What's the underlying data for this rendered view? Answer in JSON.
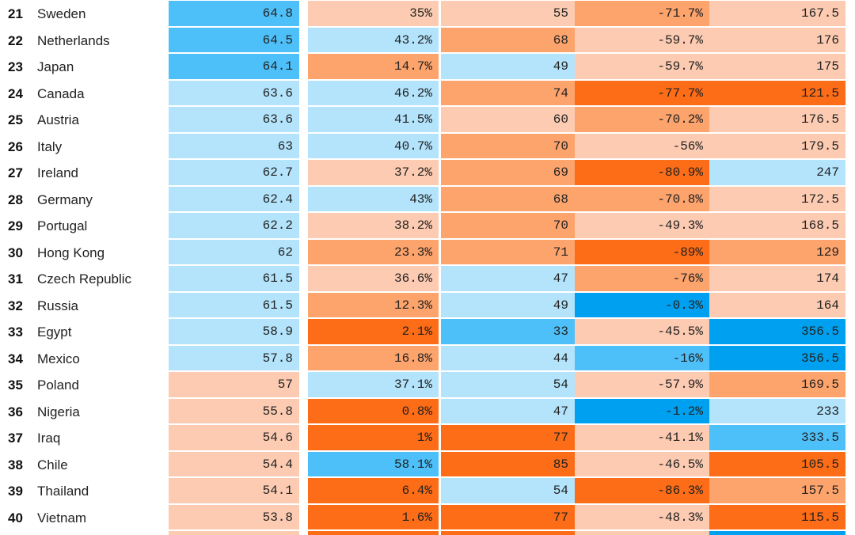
{
  "colors": {
    "blue_dark": "#00a0f0",
    "blue_mid": "#4ec0f9",
    "blue_light": "#b3e4fc",
    "orange_light": "#fdcbb1",
    "orange_mid": "#fda36c",
    "orange_dark": "#fd6c16"
  },
  "rows": [
    {
      "rank": "21",
      "country": "Sweden",
      "cells": [
        {
          "value": "64.8",
          "color": "#4ec0f9"
        },
        {
          "value": "35%",
          "color": "#fdcbb1"
        },
        {
          "value": "55",
          "color": "#fdcbb1"
        },
        {
          "value": "-71.7%",
          "color": "#fda36c"
        },
        {
          "value": "167.5",
          "color": "#fdcbb1"
        }
      ]
    },
    {
      "rank": "22",
      "country": "Netherlands",
      "cells": [
        {
          "value": "64.5",
          "color": "#4ec0f9"
        },
        {
          "value": "43.2%",
          "color": "#b3e4fc"
        },
        {
          "value": "68",
          "color": "#fda36c"
        },
        {
          "value": "-59.7%",
          "color": "#fdcbb1"
        },
        {
          "value": "176",
          "color": "#fdcbb1"
        }
      ]
    },
    {
      "rank": "23",
      "country": "Japan",
      "cells": [
        {
          "value": "64.1",
          "color": "#4ec0f9"
        },
        {
          "value": "14.7%",
          "color": "#fda36c"
        },
        {
          "value": "49",
          "color": "#b3e4fc"
        },
        {
          "value": "-59.7%",
          "color": "#fdcbb1"
        },
        {
          "value": "175",
          "color": "#fdcbb1"
        }
      ]
    },
    {
      "rank": "24",
      "country": "Canada",
      "cells": [
        {
          "value": "63.6",
          "color": "#b3e4fc"
        },
        {
          "value": "46.2%",
          "color": "#b3e4fc"
        },
        {
          "value": "74",
          "color": "#fda36c"
        },
        {
          "value": "-77.7%",
          "color": "#fd6c16"
        },
        {
          "value": "121.5",
          "color": "#fd6c16"
        }
      ]
    },
    {
      "rank": "25",
      "country": "Austria",
      "cells": [
        {
          "value": "63.6",
          "color": "#b3e4fc"
        },
        {
          "value": "41.5%",
          "color": "#b3e4fc"
        },
        {
          "value": "60",
          "color": "#fdcbb1"
        },
        {
          "value": "-70.2%",
          "color": "#fda36c"
        },
        {
          "value": "176.5",
          "color": "#fdcbb1"
        }
      ]
    },
    {
      "rank": "26",
      "country": "Italy",
      "cells": [
        {
          "value": "63",
          "color": "#b3e4fc"
        },
        {
          "value": "40.7%",
          "color": "#b3e4fc"
        },
        {
          "value": "70",
          "color": "#fda36c"
        },
        {
          "value": "-56%",
          "color": "#fdcbb1"
        },
        {
          "value": "179.5",
          "color": "#fdcbb1"
        }
      ]
    },
    {
      "rank": "27",
      "country": "Ireland",
      "cells": [
        {
          "value": "62.7",
          "color": "#b3e4fc"
        },
        {
          "value": "37.2%",
          "color": "#fdcbb1"
        },
        {
          "value": "69",
          "color": "#fda36c"
        },
        {
          "value": "-80.9%",
          "color": "#fd6c16"
        },
        {
          "value": "247",
          "color": "#b3e4fc"
        }
      ]
    },
    {
      "rank": "28",
      "country": "Germany",
      "cells": [
        {
          "value": "62.4",
          "color": "#b3e4fc"
        },
        {
          "value": "43%",
          "color": "#b3e4fc"
        },
        {
          "value": "68",
          "color": "#fda36c"
        },
        {
          "value": "-70.8%",
          "color": "#fda36c"
        },
        {
          "value": "172.5",
          "color": "#fdcbb1"
        }
      ]
    },
    {
      "rank": "29",
      "country": "Portugal",
      "cells": [
        {
          "value": "62.2",
          "color": "#b3e4fc"
        },
        {
          "value": "38.2%",
          "color": "#fdcbb1"
        },
        {
          "value": "70",
          "color": "#fda36c"
        },
        {
          "value": "-49.3%",
          "color": "#fdcbb1"
        },
        {
          "value": "168.5",
          "color": "#fdcbb1"
        }
      ]
    },
    {
      "rank": "30",
      "country": "Hong Kong",
      "cells": [
        {
          "value": "62",
          "color": "#b3e4fc"
        },
        {
          "value": "23.3%",
          "color": "#fda36c"
        },
        {
          "value": "71",
          "color": "#fda36c"
        },
        {
          "value": "-89%",
          "color": "#fd6c16"
        },
        {
          "value": "129",
          "color": "#fda36c"
        }
      ]
    },
    {
      "rank": "31",
      "country": "Czech Republic",
      "cells": [
        {
          "value": "61.5",
          "color": "#b3e4fc"
        },
        {
          "value": "36.6%",
          "color": "#fdcbb1"
        },
        {
          "value": "47",
          "color": "#b3e4fc"
        },
        {
          "value": "-76%",
          "color": "#fda36c"
        },
        {
          "value": "174",
          "color": "#fdcbb1"
        }
      ]
    },
    {
      "rank": "32",
      "country": "Russia",
      "cells": [
        {
          "value": "61.5",
          "color": "#b3e4fc"
        },
        {
          "value": "12.3%",
          "color": "#fda36c"
        },
        {
          "value": "49",
          "color": "#b3e4fc"
        },
        {
          "value": "-0.3%",
          "color": "#00a0f0"
        },
        {
          "value": "164",
          "color": "#fdcbb1"
        }
      ]
    },
    {
      "rank": "33",
      "country": "Egypt",
      "cells": [
        {
          "value": "58.9",
          "color": "#b3e4fc"
        },
        {
          "value": "2.1%",
          "color": "#fd6c16"
        },
        {
          "value": "33",
          "color": "#4ec0f9"
        },
        {
          "value": "-45.5%",
          "color": "#fdcbb1"
        },
        {
          "value": "356.5",
          "color": "#00a0f0"
        }
      ]
    },
    {
      "rank": "34",
      "country": "Mexico",
      "cells": [
        {
          "value": "57.8",
          "color": "#b3e4fc"
        },
        {
          "value": "16.8%",
          "color": "#fda36c"
        },
        {
          "value": "44",
          "color": "#b3e4fc"
        },
        {
          "value": "-16%",
          "color": "#4ec0f9"
        },
        {
          "value": "356.5",
          "color": "#00a0f0"
        }
      ]
    },
    {
      "rank": "35",
      "country": "Poland",
      "cells": [
        {
          "value": "57",
          "color": "#fdcbb1"
        },
        {
          "value": "37.1%",
          "color": "#b3e4fc"
        },
        {
          "value": "54",
          "color": "#b3e4fc"
        },
        {
          "value": "-57.9%",
          "color": "#fdcbb1"
        },
        {
          "value": "169.5",
          "color": "#fda36c"
        }
      ]
    },
    {
      "rank": "36",
      "country": "Nigeria",
      "cells": [
        {
          "value": "55.8",
          "color": "#fdcbb1"
        },
        {
          "value": "0.8%",
          "color": "#fd6c16"
        },
        {
          "value": "47",
          "color": "#b3e4fc"
        },
        {
          "value": "-1.2%",
          "color": "#00a0f0"
        },
        {
          "value": "233",
          "color": "#b3e4fc"
        }
      ]
    },
    {
      "rank": "37",
      "country": "Iraq",
      "cells": [
        {
          "value": "54.6",
          "color": "#fdcbb1"
        },
        {
          "value": "1%",
          "color": "#fd6c16"
        },
        {
          "value": "77",
          "color": "#fd6c16"
        },
        {
          "value": "-41.1%",
          "color": "#fdcbb1"
        },
        {
          "value": "333.5",
          "color": "#4ec0f9"
        }
      ]
    },
    {
      "rank": "38",
      "country": "Chile",
      "cells": [
        {
          "value": "54.4",
          "color": "#fdcbb1"
        },
        {
          "value": "58.1%",
          "color": "#4ec0f9"
        },
        {
          "value": "85",
          "color": "#fd6c16"
        },
        {
          "value": "-46.5%",
          "color": "#fdcbb1"
        },
        {
          "value": "105.5",
          "color": "#fd6c16"
        }
      ]
    },
    {
      "rank": "39",
      "country": "Thailand",
      "cells": [
        {
          "value": "54.1",
          "color": "#fdcbb1"
        },
        {
          "value": "6.4%",
          "color": "#fd6c16"
        },
        {
          "value": "54",
          "color": "#b3e4fc"
        },
        {
          "value": "-86.3%",
          "color": "#fd6c16"
        },
        {
          "value": "157.5",
          "color": "#fda36c"
        }
      ]
    },
    {
      "rank": "40",
      "country": "Vietnam",
      "cells": [
        {
          "value": "53.8",
          "color": "#fdcbb1"
        },
        {
          "value": "1.6%",
          "color": "#fd6c16"
        },
        {
          "value": "77",
          "color": "#fd6c16"
        },
        {
          "value": "-48.3%",
          "color": "#fdcbb1"
        },
        {
          "value": "115.5",
          "color": "#fd6c16"
        }
      ]
    }
  ],
  "bottom_strip_colors": [
    "#fdcbb1",
    "#fd6c16",
    "#fd6c16",
    "#fdcbb1",
    "#00a0f0"
  ]
}
